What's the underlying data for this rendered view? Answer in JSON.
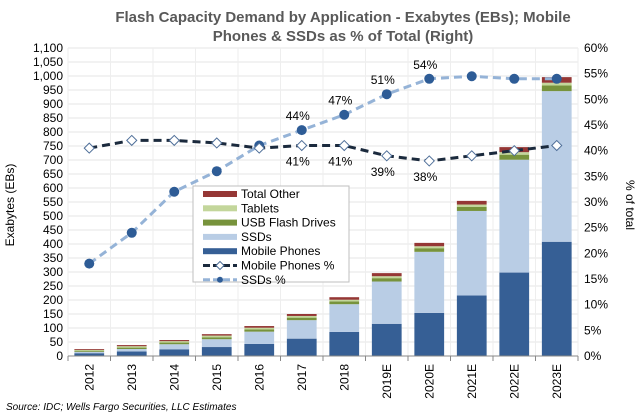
{
  "chart_data": {
    "type": "bar",
    "stacked": true,
    "title": "Flash Capacity Demand by Application  - Exabytes (EBs); Mobile Phones & SSDs as % of Total (Right)",
    "title_lines": [
      "Flash Capacity Demand by Application  - Exabytes (EBs); Mobile",
      "Phones & SSDs as % of Total (Right)"
    ],
    "ylabel": "Exabytes (EBs)",
    "y2label": "% of total",
    "ylim": [
      0,
      1100
    ],
    "y2lim": [
      0,
      60
    ],
    "yticks": [
      "0",
      "50",
      "100",
      "150",
      "200",
      "250",
      "300",
      "350",
      "400",
      "450",
      "500",
      "550",
      "600",
      "650",
      "700",
      "750",
      "800",
      "850",
      "900",
      "950",
      "1,000",
      "1,050",
      "1,100"
    ],
    "y2ticks": [
      "0%",
      "5%",
      "10%",
      "15%",
      "20%",
      "25%",
      "30%",
      "35%",
      "40%",
      "45%",
      "50%",
      "55%",
      "60%"
    ],
    "grid": true,
    "legend_position": "center-left",
    "categories": [
      "2012",
      "2013",
      "2014",
      "2015",
      "2016",
      "2017",
      "2018",
      "2019E",
      "2020E",
      "2021E",
      "2022E",
      "2023E"
    ],
    "series": [
      {
        "name": "Mobile Phones",
        "type": "bar",
        "color": "#365f95",
        "values": [
          10,
          16,
          24,
          32,
          43,
          62,
          86,
          115,
          154,
          216,
          298,
          408
        ]
      },
      {
        "name": "SSDs",
        "type": "bar",
        "color": "#b9cde5",
        "values": [
          5,
          9,
          18,
          28,
          44,
          66,
          99,
          151,
          218,
          302,
          403,
          538
        ]
      },
      {
        "name": "USB Flash Drives",
        "type": "bar",
        "color": "#77933c",
        "values": [
          4,
          5,
          6,
          7,
          8,
          9,
          10,
          12,
          13,
          15,
          18,
          20
        ]
      },
      {
        "name": "Tablets",
        "type": "bar",
        "color": "#c3d69b",
        "values": [
          3,
          5,
          5,
          6,
          6,
          6,
          6,
          7,
          7,
          8,
          9,
          10
        ]
      },
      {
        "name": "Total Other",
        "type": "bar",
        "color": "#953735",
        "values": [
          3,
          4,
          4,
          5,
          6,
          7,
          9,
          11,
          12,
          13,
          18,
          20
        ]
      },
      {
        "name": "Mobile Phones %",
        "type": "line",
        "axis": "right",
        "color": "#1b2a3d",
        "values": [
          40.5,
          42,
          42,
          41.5,
          40.5,
          41,
          41,
          39,
          38,
          39,
          40,
          41
        ]
      },
      {
        "name": "SSDs %",
        "type": "line",
        "axis": "right",
        "color": "#95b3d7",
        "marker_color": "#2e5c96",
        "values": [
          18,
          24,
          32,
          36,
          41,
          44,
          47,
          51,
          54,
          54.5,
          54,
          54
        ]
      }
    ],
    "data_labels": [
      {
        "series": "SSDs %",
        "category": "2017",
        "text": "44%"
      },
      {
        "series": "SSDs %",
        "category": "2018",
        "text": "47%"
      },
      {
        "series": "SSDs %",
        "category": "2019E",
        "text": "51%"
      },
      {
        "series": "SSDs %",
        "category": "2020E",
        "text": "54%"
      },
      {
        "series": "Mobile Phones %",
        "category": "2017",
        "text": "41%"
      },
      {
        "series": "Mobile Phones %",
        "category": "2018",
        "text": "41%"
      },
      {
        "series": "Mobile Phones %",
        "category": "2019E",
        "text": "39%"
      },
      {
        "series": "Mobile Phones %",
        "category": "2020E",
        "text": "38%"
      }
    ]
  },
  "source": "Source: IDC; Wells Fargo Securities, LLC Estimates"
}
